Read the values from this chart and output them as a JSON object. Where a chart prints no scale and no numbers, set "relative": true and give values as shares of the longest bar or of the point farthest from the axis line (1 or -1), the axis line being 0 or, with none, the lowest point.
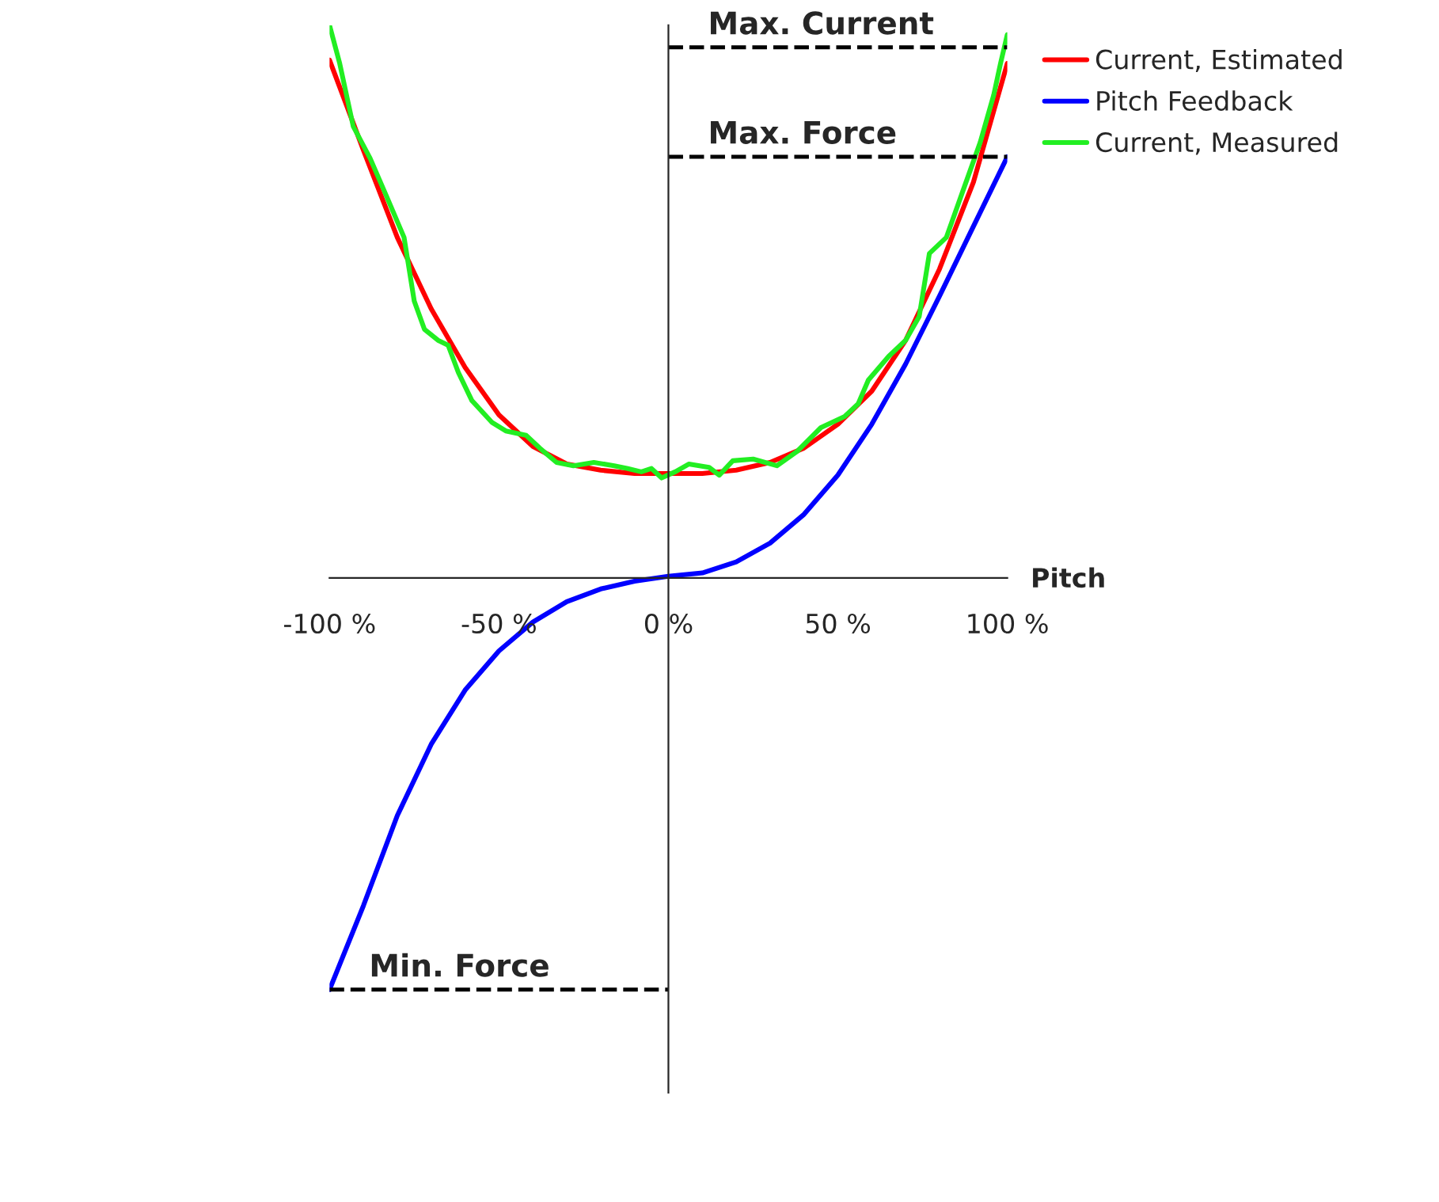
{
  "chart_data": {
    "type": "line",
    "relative": true,
    "xlabel": "Pitch",
    "xlim": [
      -100,
      100
    ],
    "xticks": [
      {
        "value": -100,
        "label": "-100 %"
      },
      {
        "value": -50,
        "label": "-50 %"
      },
      {
        "value": 0,
        "label": "0 %"
      },
      {
        "value": 50,
        "label": "50 %"
      },
      {
        "value": 100,
        "label": "100 %"
      }
    ],
    "legend": "top right",
    "marker": "none",
    "series": [
      {
        "name": "Current, Estimated",
        "color": "#ff0000",
        "line_style": "solid",
        "x": [
          -100,
          -90,
          -80,
          -70,
          -60,
          -50,
          -40,
          -30,
          -20,
          -10,
          0,
          10,
          20,
          30,
          40,
          50,
          60,
          70,
          80,
          90,
          100
        ],
        "values": [
          0.937,
          0.774,
          0.616,
          0.487,
          0.381,
          0.295,
          0.238,
          0.206,
          0.195,
          0.189,
          0.189,
          0.189,
          0.195,
          0.209,
          0.235,
          0.278,
          0.338,
          0.43,
          0.559,
          0.716,
          0.931
        ]
      },
      {
        "name": "Pitch Feedback",
        "color": "#0000ff",
        "line_style": "solid",
        "x": [
          -100,
          -90,
          -80,
          -70,
          -60,
          -50,
          -40,
          -30,
          -20,
          -10,
          0,
          10,
          20,
          30,
          40,
          50,
          60,
          70,
          80,
          90,
          100
        ],
        "values": [
          -0.745,
          -0.593,
          -0.43,
          -0.301,
          -0.203,
          -0.132,
          -0.08,
          -0.043,
          -0.02,
          -0.006,
          0.003,
          0.009,
          0.029,
          0.063,
          0.115,
          0.186,
          0.278,
          0.387,
          0.51,
          0.636,
          0.762
        ]
      },
      {
        "name": "Current, Measured",
        "color": "#22ee22",
        "line_style": "solid",
        "x": [
          -100,
          -97,
          -93,
          -88,
          -83,
          -78,
          -75,
          -72,
          -68,
          -65,
          -62,
          -58,
          -52,
          -48,
          -42,
          -38,
          -33,
          -28,
          -22,
          -16,
          -12,
          -8,
          -5,
          -2,
          2,
          6,
          12,
          15,
          19,
          25,
          32,
          38,
          45,
          52,
          56,
          59,
          65,
          70,
          74,
          77,
          82,
          87,
          92,
          96,
          98,
          100
        ],
        "values": [
          1.0,
          0.931,
          0.817,
          0.759,
          0.688,
          0.616,
          0.501,
          0.45,
          0.43,
          0.421,
          0.372,
          0.321,
          0.281,
          0.266,
          0.258,
          0.235,
          0.209,
          0.203,
          0.209,
          0.203,
          0.198,
          0.192,
          0.198,
          0.181,
          0.192,
          0.206,
          0.2,
          0.186,
          0.212,
          0.215,
          0.203,
          0.229,
          0.272,
          0.292,
          0.315,
          0.358,
          0.401,
          0.43,
          0.473,
          0.587,
          0.616,
          0.702,
          0.788,
          0.874,
          0.931,
          0.983
        ]
      },
      {
        "name": "Max. Current",
        "color": "#000000",
        "line_style": "dashed",
        "x": [
          0,
          100
        ],
        "values": [
          0.96,
          0.96
        ]
      },
      {
        "name": "Max. Force",
        "color": "#000000",
        "line_style": "dashed",
        "x": [
          0,
          100
        ],
        "values": [
          0.762,
          0.762
        ]
      },
      {
        "name": "Min. Force",
        "color": "#000000",
        "line_style": "dashed",
        "x": [
          -100,
          0
        ],
        "values": [
          -0.745,
          -0.745
        ]
      }
    ]
  }
}
